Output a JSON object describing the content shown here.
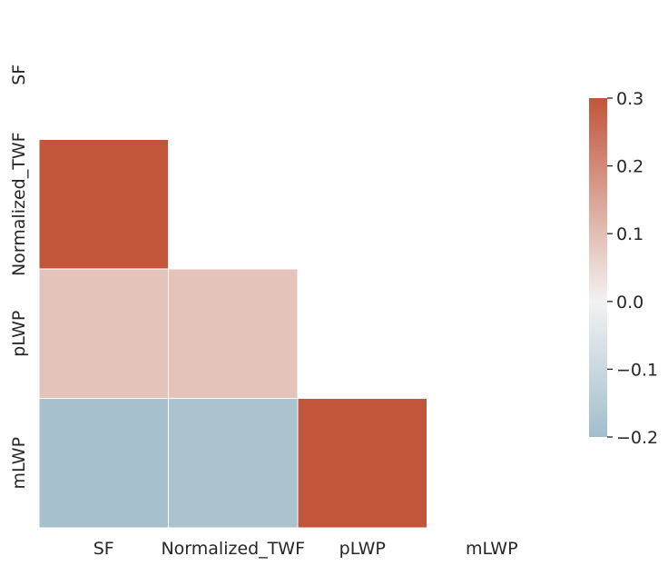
{
  "chart_data": {
    "type": "heatmap",
    "variables": [
      "SF",
      "Normalized_TWF",
      "pLWP",
      "mLWP"
    ],
    "mask": "upper-triangle-and-diagonal",
    "cells": [
      {
        "row": "Normalized_TWF",
        "col": "SF",
        "value": 0.31
      },
      {
        "row": "pLWP",
        "col": "SF",
        "value": 0.09
      },
      {
        "row": "pLWP",
        "col": "Normalized_TWF",
        "value": 0.09
      },
      {
        "row": "mLWP",
        "col": "SF",
        "value": -0.19
      },
      {
        "row": "mLWP",
        "col": "Normalized_TWF",
        "value": -0.18
      },
      {
        "row": "mLWP",
        "col": "pLWP",
        "value": 0.31
      }
    ],
    "colorbar": {
      "vmin": -0.2,
      "vmax": 0.3,
      "ticks": [
        0.3,
        0.2,
        0.1,
        0.0,
        -0.1,
        -0.2
      ],
      "tick_labels": [
        "0.3",
        "0.2",
        "0.1",
        "0.0",
        "−0.1",
        "−0.2"
      ]
    },
    "colors": {
      "negative": "#7aa3b8",
      "center": "#f2f2f2",
      "positive": "#c2553a"
    }
  }
}
